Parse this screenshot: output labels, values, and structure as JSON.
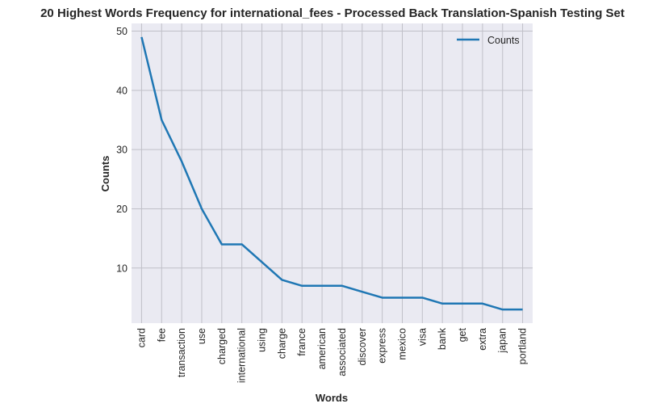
{
  "chart_data": {
    "type": "line",
    "title": "20 Highest Words Frequency for international_fees - Processed Back Translation-Spanish Testing Set",
    "xlabel": "Words",
    "ylabel": "Counts",
    "categories": [
      "card",
      "fee",
      "transaction",
      "use",
      "charged",
      "international",
      "using",
      "charge",
      "france",
      "american",
      "associated",
      "discover",
      "express",
      "mexico",
      "visa",
      "bank",
      "get",
      "extra",
      "japan",
      "portland"
    ],
    "series": [
      {
        "name": "Counts",
        "color": "#1f77b4",
        "values": [
          49,
          35,
          28,
          20,
          14,
          14,
          11,
          8,
          7,
          7,
          7,
          6,
          5,
          5,
          5,
          4,
          4,
          4,
          3,
          3
        ]
      }
    ],
    "yticks": [
      10,
      20,
      30,
      40,
      50
    ],
    "ylim": [
      0.7,
      51.3
    ],
    "grid": true,
    "legend": "top-right",
    "colors": {
      "plot_background": "#eaeaf2",
      "grid": "#c0c0c8"
    }
  }
}
